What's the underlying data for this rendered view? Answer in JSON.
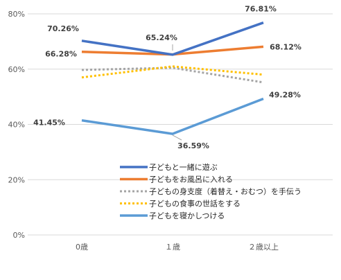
{
  "chart_data": {
    "type": "line",
    "title": "",
    "xlabel": "",
    "ylabel": "",
    "categories": [
      "0歳",
      "１歳",
      "２歳以上"
    ],
    "ylim": [
      0,
      80
    ],
    "y_ticks": [
      "0%",
      "20%",
      "40%",
      "60%",
      "80%"
    ],
    "grid": true,
    "legend_placement": "center-right",
    "series": [
      {
        "name": "子どもと一緒に遊ぶ",
        "values": [
          70.26,
          65.24,
          76.81
        ],
        "labels": [
          "70.26%",
          "65.24%",
          "76.81%"
        ],
        "color": "#4472C4",
        "dash": "solid"
      },
      {
        "name": "子どもをお風呂に入れる",
        "values": [
          66.28,
          65.3,
          68.12
        ],
        "labels": [
          "66.28%",
          "",
          "68.12%"
        ],
        "color": "#ED7D31",
        "dash": "solid"
      },
      {
        "name": "子どもの身支度（着替え・おむつ）を手伝う",
        "values": [
          59.7,
          60.5,
          55.2
        ],
        "labels": [
          "",
          "",
          ""
        ],
        "color": "#A5A5A5",
        "dash": "dotted"
      },
      {
        "name": "子どもの食事の世話をする",
        "values": [
          57.0,
          61.0,
          58.0
        ],
        "labels": [
          "",
          "",
          ""
        ],
        "color": "#FFC000",
        "dash": "dotted"
      },
      {
        "name": "子どもを寝かしつける",
        "values": [
          41.45,
          36.59,
          49.28
        ],
        "labels": [
          "41.45%",
          "36.59%",
          "49.28%"
        ],
        "color": "#5B9BD5",
        "dash": "solid"
      }
    ]
  }
}
